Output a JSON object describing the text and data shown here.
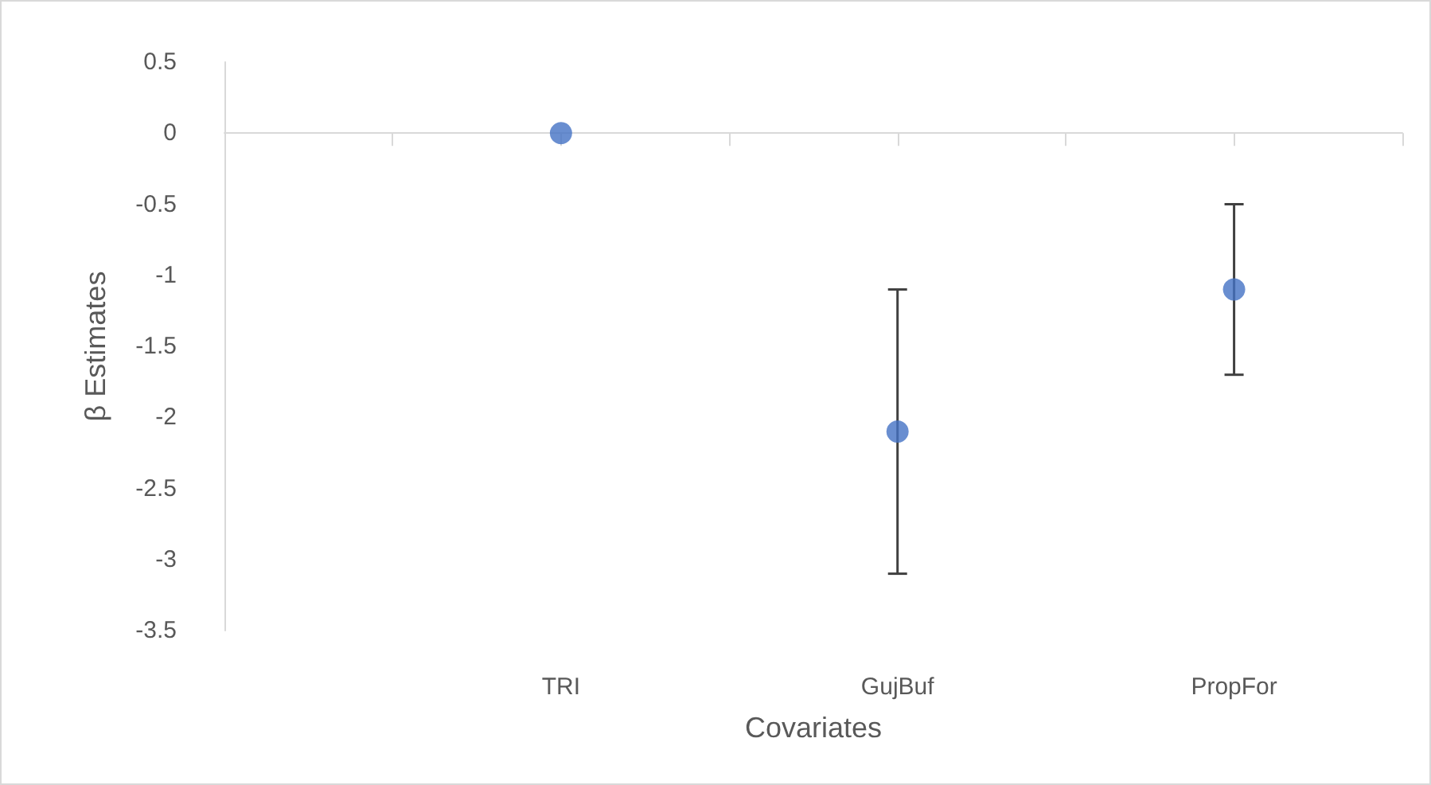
{
  "chart_data": {
    "type": "scatter",
    "xlabel": "Covariates",
    "ylabel": "β Estimates",
    "categories": [
      null,
      null,
      "TRI",
      null,
      "GujBuf",
      null,
      "PropFor",
      null
    ],
    "values": [
      null,
      null,
      0,
      null,
      -2.1,
      null,
      -1.1,
      null
    ],
    "errors": [
      null,
      null,
      null,
      null,
      [
        -3.1,
        -1.1
      ],
      null,
      [
        -1.7,
        -0.5
      ],
      null
    ],
    "color": "#4472c4",
    "marker": "circle",
    "ylim": [
      -3.5,
      0.5
    ],
    "yticks": [
      0.5,
      0,
      -0.5,
      -1,
      -1.5,
      -2,
      -2.5,
      -3,
      -3.5
    ]
  }
}
